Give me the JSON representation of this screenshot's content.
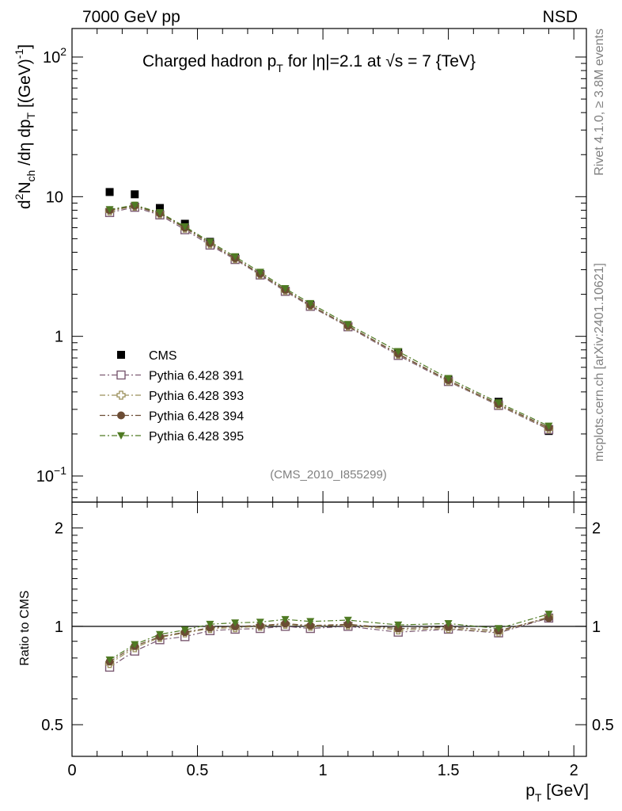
{
  "header": {
    "left": "7000 GeV pp",
    "right": "NSD"
  },
  "side_text": {
    "rivet": "Rivet 4.1.0, ≥ 3.8M events",
    "mcplots": "mcplots.cern.ch [arXiv:2401.10621]"
  },
  "chart_data": [
    {
      "type": "scatter",
      "title": "Charged hadron p_T for |η|=2.1 at √s = 7 {TeV}",
      "title_parts": {
        "a": "Charged hadron p",
        "a_sub": "T",
        "b": " for |η|=2.1 at ",
        "sqrt": "√",
        "c": "s = 7 {TeV}"
      },
      "watermark": "(CMS_2010_I855299)",
      "ylabel": "d²N_ch/dη dp_T [(GeV)⁻¹]",
      "ylabel_parts": {
        "d": "d",
        "sup2": "2",
        "n": "N",
        "ch": "ch",
        "mid": " /dη  dp",
        "t": "T",
        "unit": " [(GeV)",
        "exp": "-1",
        "close": "]"
      },
      "yscale": "log",
      "ylim": [
        0.065,
        160
      ],
      "xlim": [
        0,
        2.05
      ],
      "yticks": [
        {
          "value": 100,
          "label": "10",
          "exp": "2"
        },
        {
          "value": 10,
          "label": "10",
          "exp": ""
        },
        {
          "value": 1,
          "label": "1",
          "exp": ""
        },
        {
          "value": 0.1,
          "label": "10",
          "exp": "−1"
        }
      ],
      "x": [
        0.15,
        0.25,
        0.35,
        0.45,
        0.55,
        0.65,
        0.75,
        0.85,
        0.95,
        1.1,
        1.3,
        1.5,
        1.7,
        1.9
      ],
      "series": [
        {
          "name": "CMS",
          "color": "#000000",
          "marker": "square-filled",
          "line": "none",
          "values": [
            10.8,
            10.4,
            8.3,
            6.4,
            4.75,
            3.65,
            2.8,
            2.12,
            1.68,
            1.18,
            0.77,
            0.49,
            0.34,
            0.21
          ]
        },
        {
          "name": "Pythia 6.428 391",
          "color": "#7b5a72",
          "marker": "square-open",
          "line": "dashdot",
          "values": [
            7.7,
            8.4,
            7.4,
            5.8,
            4.5,
            3.55,
            2.75,
            2.1,
            1.64,
            1.17,
            0.73,
            0.475,
            0.32,
            0.215
          ]
        },
        {
          "name": "Pythia 6.428 393",
          "color": "#9a8f5a",
          "marker": "cross-open",
          "line": "dashdot",
          "values": [
            7.9,
            8.55,
            7.55,
            5.95,
            4.6,
            3.6,
            2.78,
            2.13,
            1.66,
            1.18,
            0.745,
            0.48,
            0.323,
            0.218
          ]
        },
        {
          "name": "Pythia 6.428 394",
          "color": "#6b4c34",
          "marker": "circle-filled",
          "line": "dashdot",
          "values": [
            8.0,
            8.6,
            7.6,
            6.0,
            4.65,
            3.62,
            2.8,
            2.15,
            1.67,
            1.19,
            0.75,
            0.485,
            0.327,
            0.222
          ]
        },
        {
          "name": "Pythia 6.428 395",
          "color": "#4f7a23",
          "marker": "triangle-down-filled",
          "line": "dashdot",
          "values": [
            8.1,
            8.7,
            7.7,
            6.1,
            4.75,
            3.72,
            2.88,
            2.2,
            1.72,
            1.22,
            0.78,
            0.5,
            0.335,
            0.228
          ]
        }
      ]
    },
    {
      "type": "scatter",
      "title": "",
      "xlabel": "p_T [GeV]",
      "xlabel_parts": {
        "p": "p",
        "t": "T",
        "unit": " [GeV]"
      },
      "ylabel": "Ratio to CMS",
      "yscale": "log",
      "ylim": [
        0.4,
        2.4
      ],
      "xlim": [
        0,
        2.05
      ],
      "yticks": [
        {
          "value": 2,
          "label": "2"
        },
        {
          "value": 1,
          "label": "1"
        },
        {
          "value": 0.5,
          "label": "0.5"
        }
      ],
      "xticks": [
        {
          "value": 0,
          "label": "0"
        },
        {
          "value": 0.5,
          "label": "0.5"
        },
        {
          "value": 1,
          "label": "1"
        },
        {
          "value": 1.5,
          "label": "1.5"
        },
        {
          "value": 2,
          "label": "2"
        }
      ],
      "reference_line": 1,
      "x": [
        0.15,
        0.25,
        0.35,
        0.45,
        0.55,
        0.65,
        0.75,
        0.85,
        0.95,
        1.1,
        1.3,
        1.5,
        1.7,
        1.9
      ],
      "series": [
        {
          "name": "Pythia 6.428 391",
          "color": "#7b5a72",
          "marker": "square-open",
          "values": [
            0.75,
            0.84,
            0.91,
            0.93,
            0.97,
            0.98,
            0.985,
            1.0,
            0.985,
            1.0,
            0.96,
            0.98,
            0.955,
            1.06
          ]
        },
        {
          "name": "Pythia 6.428 393",
          "color": "#9a8f5a",
          "marker": "cross-open",
          "values": [
            0.77,
            0.86,
            0.925,
            0.955,
            0.985,
            0.99,
            1.0,
            1.015,
            1.0,
            1.01,
            0.975,
            0.985,
            0.96,
            1.07
          ]
        },
        {
          "name": "Pythia 6.428 394",
          "color": "#6b4c34",
          "marker": "circle-filled",
          "values": [
            0.78,
            0.87,
            0.93,
            0.96,
            0.99,
            1.0,
            1.005,
            1.02,
            1.005,
            1.015,
            0.985,
            0.995,
            0.97,
            1.06
          ]
        },
        {
          "name": "Pythia 6.428 395",
          "color": "#4f7a23",
          "marker": "triangle-down-filled",
          "values": [
            0.79,
            0.88,
            0.945,
            0.975,
            1.015,
            1.025,
            1.03,
            1.05,
            1.035,
            1.045,
            1.01,
            1.02,
            0.985,
            1.09
          ]
        }
      ]
    }
  ]
}
